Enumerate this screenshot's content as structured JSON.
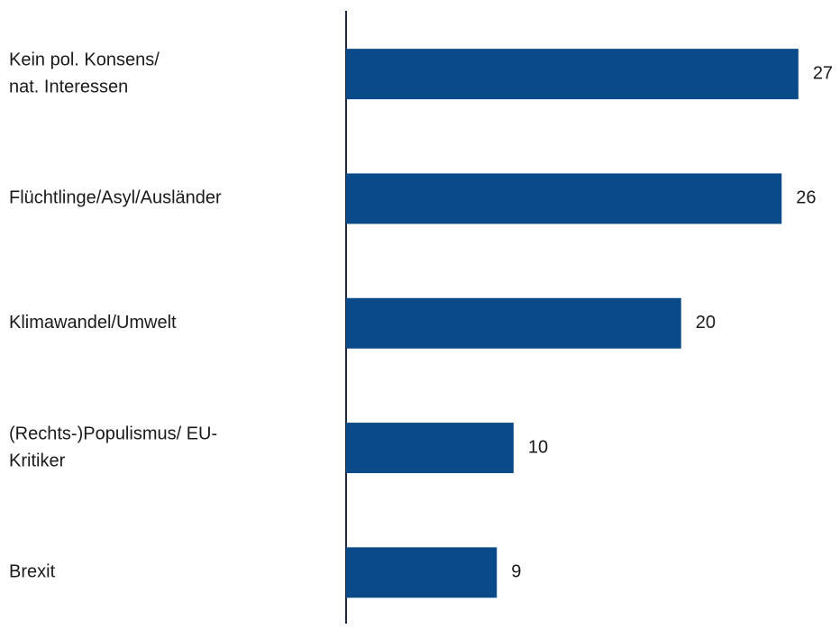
{
  "chart_data": {
    "type": "barh",
    "categories": [
      [
        "Kein pol. Konsens/",
        "nat. Interessen"
      ],
      [
        "Flüchtlinge/Asyl/Ausländer"
      ],
      [
        "Klimawandel/Umwelt"
      ],
      [
        "(Rechts-)Populismus/ EU-",
        "Kritiker"
      ],
      [
        "Brexit"
      ]
    ],
    "values": [
      27,
      26,
      20,
      10,
      9
    ],
    "color": "#0a4a89",
    "xlim": [
      0,
      29
    ]
  }
}
